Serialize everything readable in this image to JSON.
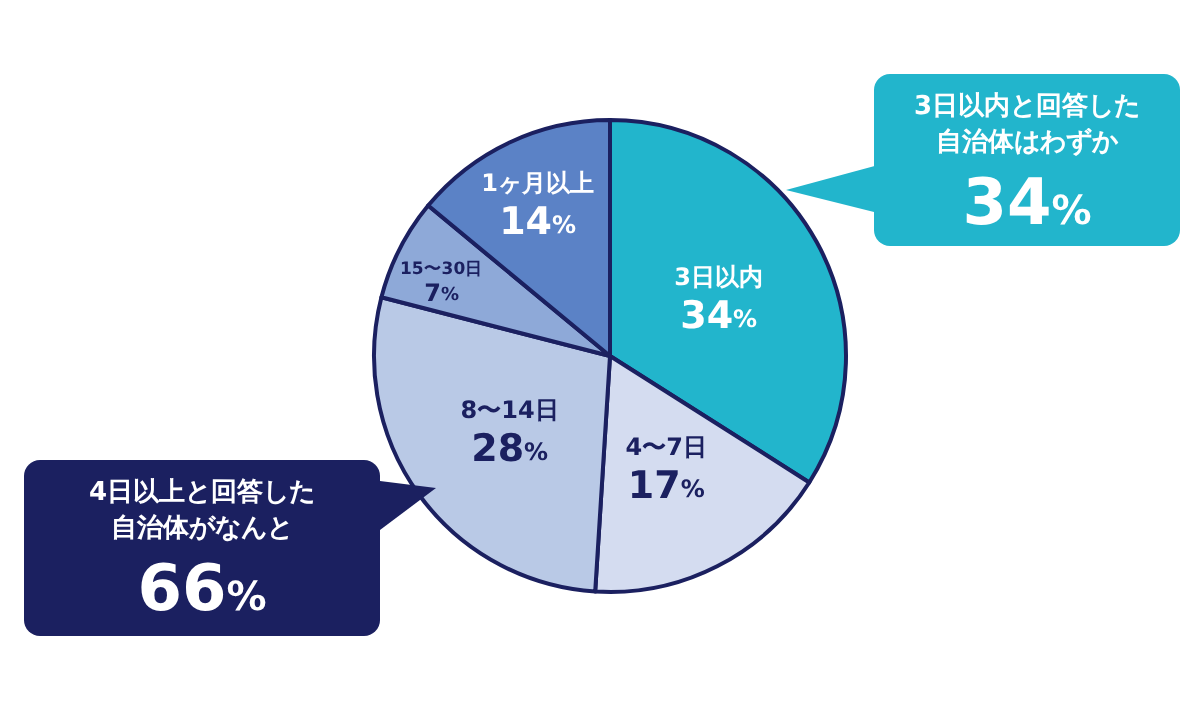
{
  "chart_data": {
    "type": "pie",
    "categories": [
      "3日以内",
      "4〜7日",
      "8〜14日",
      "15〜30日",
      "1ヶ月以上"
    ],
    "values": [
      34,
      17,
      28,
      7,
      14
    ],
    "value_labels": [
      "34%",
      "17%",
      "28%",
      "7%",
      "14%"
    ],
    "colors": [
      "#22b5cc",
      "#d4dcf0",
      "#b9c9e6",
      "#8ea9d8",
      "#5b82c6"
    ],
    "annotations": [
      "3日以内と回答した自治体はわずか",
      "34%",
      "4日以上と回答した自治体がなんと",
      "66%"
    ]
  }
}
